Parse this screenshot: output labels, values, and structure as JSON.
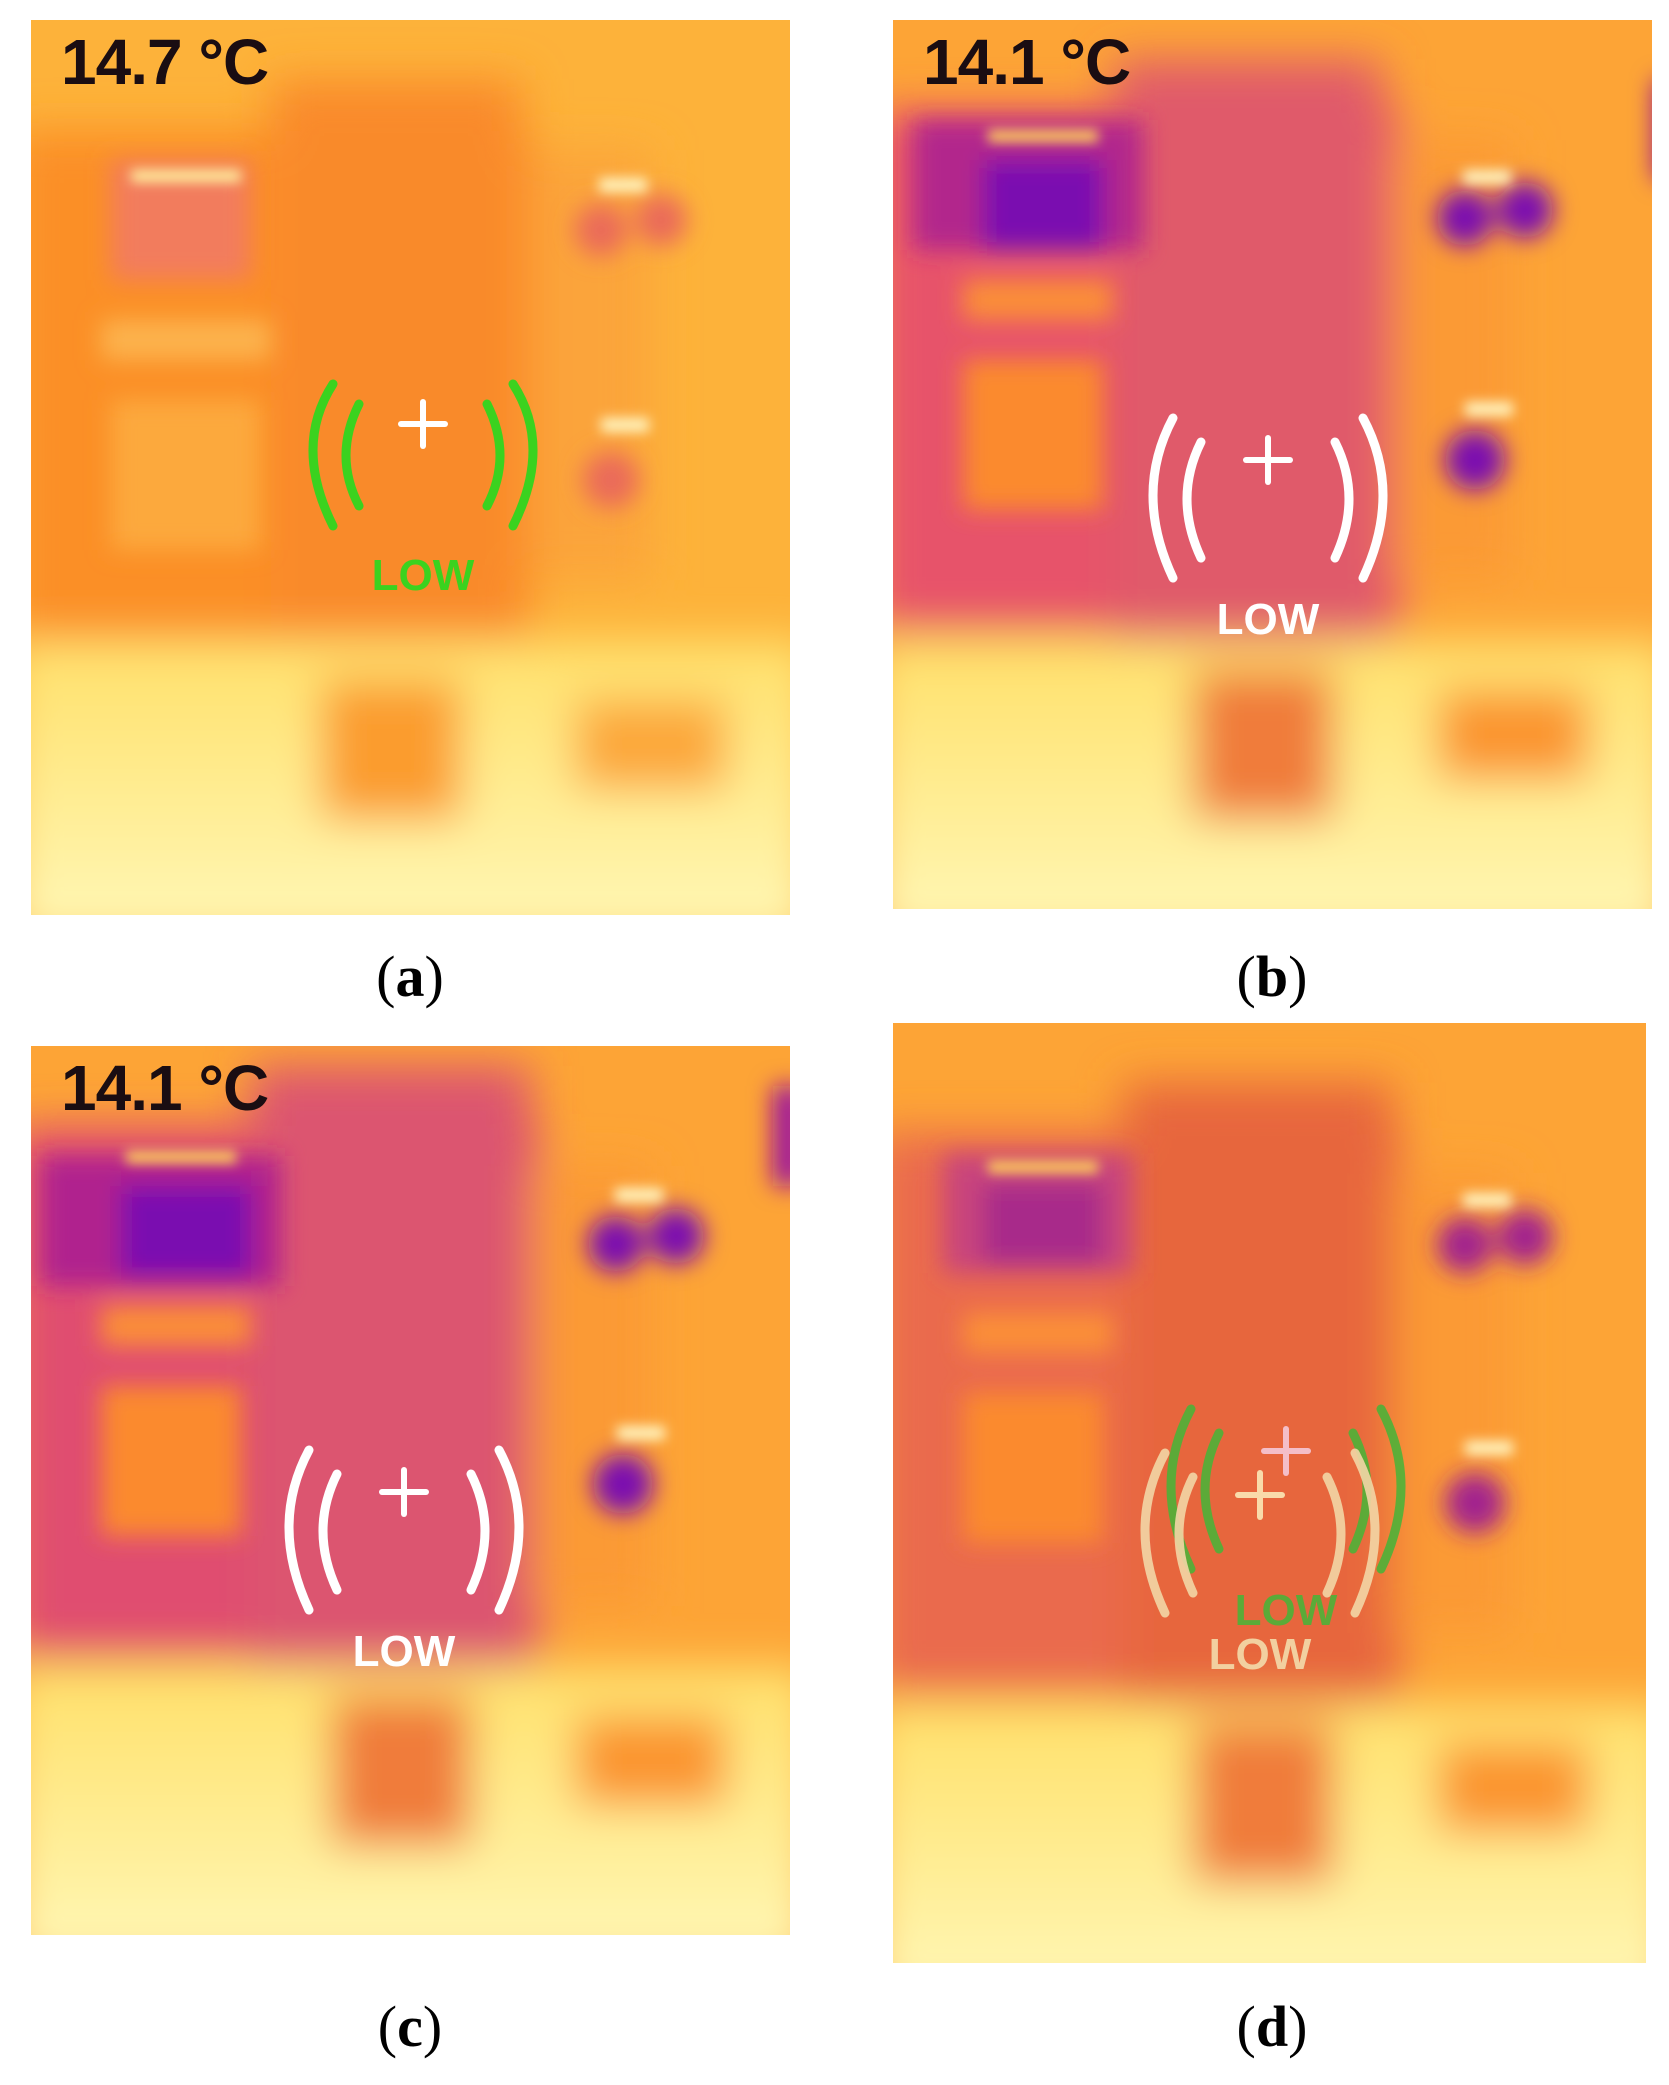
{
  "panels": [
    {
      "id": "a",
      "caption": "a",
      "temperature": "14.7 °C",
      "reticle_label": "LOW",
      "reticle_color": "#3bd21f"
    },
    {
      "id": "b",
      "caption": "b",
      "temperature": "14.1 °C",
      "reticle_label": "LOW",
      "reticle_color": "#ffffff"
    },
    {
      "id": "c",
      "caption": "c",
      "temperature": "14.1 °C",
      "reticle_label": "LOW",
      "reticle_color": "#ffffff"
    },
    {
      "id": "d",
      "caption": "d",
      "temperature": "",
      "reticle_labels": [
        "LOW",
        "LOW"
      ],
      "reticle_colors": [
        "#f3d6a6",
        "#4eb238"
      ]
    }
  ],
  "palette": {
    "hot": "#fdf7b0",
    "warm": "#fed35a",
    "mid": "#fb9a28",
    "cool": "#e0556a",
    "cold": "#7a10b0"
  }
}
